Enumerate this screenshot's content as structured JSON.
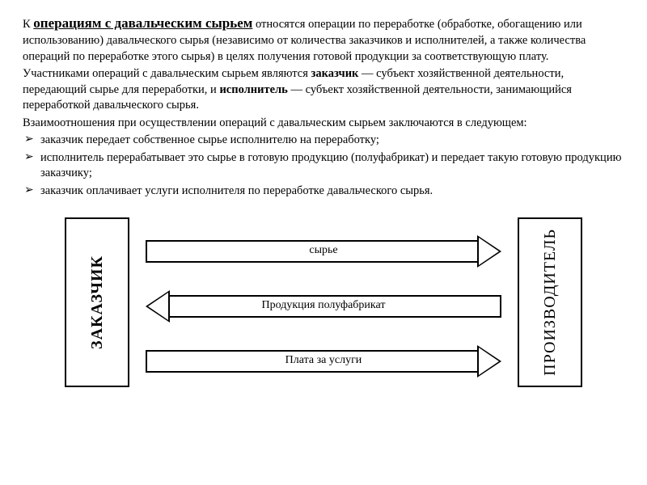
{
  "text": {
    "before_term": "К ",
    "term": "операциям с давальческим сырьем",
    "p1": " относятся операции по переработке (обработке, обогащению или использованию) давальческого сырья (независимо от количества заказчиков и исполнителей, а также количества операций по переработке этого сырья) в целях получения готовой продукции за соответствующую плату.",
    "p2a": "Участниками операций с давальческим сырьем являются ",
    "p2_bold1": "заказчик",
    "p2b": " — субъект хозяйственной деятельности, передающий сырье для переработки, и ",
    "p2_bold2": "исполнитель",
    "p2c": " — субъект хозяйственной деятельности, занимающийся переработкой давальческого сырья.",
    "p3": "Взаимоотношения при осуществлении операций с давальческим сырьем заключаются в следующем:"
  },
  "bullets": {
    "b1": "заказчик передает собственное сырье исполнителю на переработку;",
    "b2": "исполнитель перерабатывает это сырье в готовую продукцию (полуфабрикат) и передает такую готовую продукцию заказчику;",
    "b3": "заказчик оплачивает услуги исполнителя по переработке давальческого сырья."
  },
  "diagram": {
    "left_box": "ЗАКАЗЧИК",
    "right_box": "ПРОИЗВОДИТЕЛЬ",
    "arrow1": "сырье",
    "arrow2": "Продукция полуфабрикат",
    "arrow3": "Плата за услуги"
  }
}
